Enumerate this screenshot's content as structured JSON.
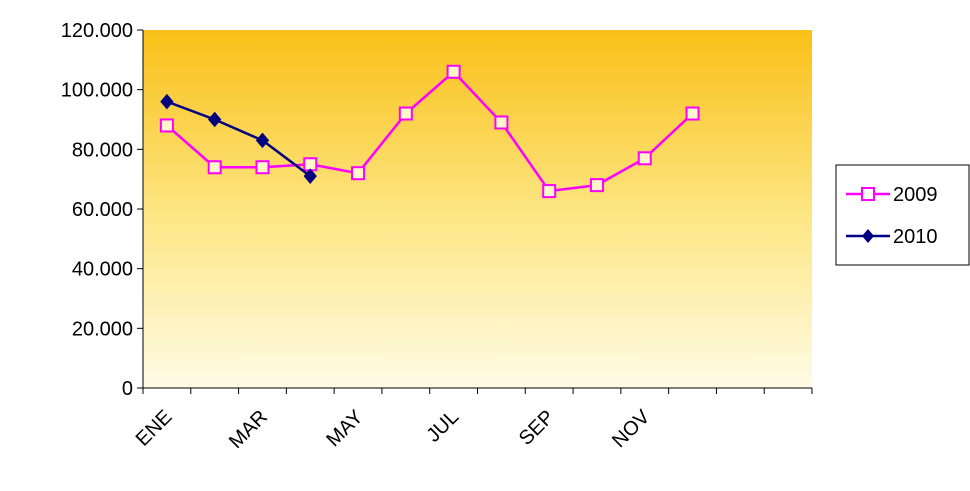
{
  "chart_data": {
    "type": "line",
    "categories": [
      "ENE",
      null,
      "MAR",
      null,
      "MAY",
      null,
      "JUL",
      null,
      "SEP",
      null,
      "NOV",
      null,
      null,
      null
    ],
    "series": [
      {
        "name": "2009",
        "color": "#ff00ff",
        "marker": "square",
        "values": [
          88000,
          74000,
          74000,
          75000,
          72000,
          92000,
          106000,
          89000,
          66000,
          68000,
          77000,
          92000,
          null,
          null
        ]
      },
      {
        "name": "2010",
        "color": "#000080",
        "marker": "diamond",
        "values": [
          96000,
          90000,
          83000,
          71000,
          null,
          null,
          null,
          null,
          null,
          null,
          null,
          null,
          null,
          null
        ]
      }
    ],
    "ylim": [
      0,
      120000
    ],
    "yticks": [
      0,
      {
        "value": 20000,
        "label": "20.000"
      },
      {
        "value": 40000,
        "label": "40.000"
      },
      {
        "value": 60000,
        "label": "60.000"
      },
      {
        "value": 80000,
        "label": "80.000"
      },
      {
        "value": 100000,
        "label": "100.000"
      },
      {
        "value": 120000,
        "label": "120.000"
      }
    ],
    "legend": "right"
  }
}
